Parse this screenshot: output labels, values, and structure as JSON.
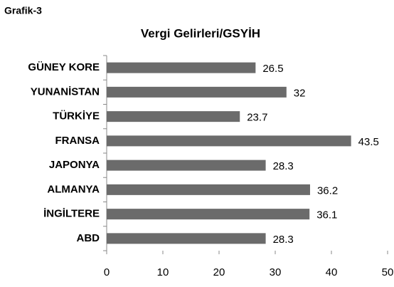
{
  "chart_data": {
    "type": "hbar",
    "heading": "Grafik-3",
    "title": "Vergi Gelirleri/GSYİH",
    "categories": [
      "GÜNEY KORE",
      "YUNANİSTAN",
      "TÜRKİYE",
      "FRANSA",
      "JAPONYA",
      "ALMANYA",
      "İNGİLTERE",
      "ABD"
    ],
    "values": [
      26.5,
      32,
      23.7,
      43.5,
      28.3,
      36.2,
      36.1,
      28.3
    ],
    "color": "#6b6b6b",
    "xlim": [
      0,
      50
    ],
    "xticks": [
      0,
      10,
      20,
      30,
      40,
      50
    ],
    "grid": false
  }
}
